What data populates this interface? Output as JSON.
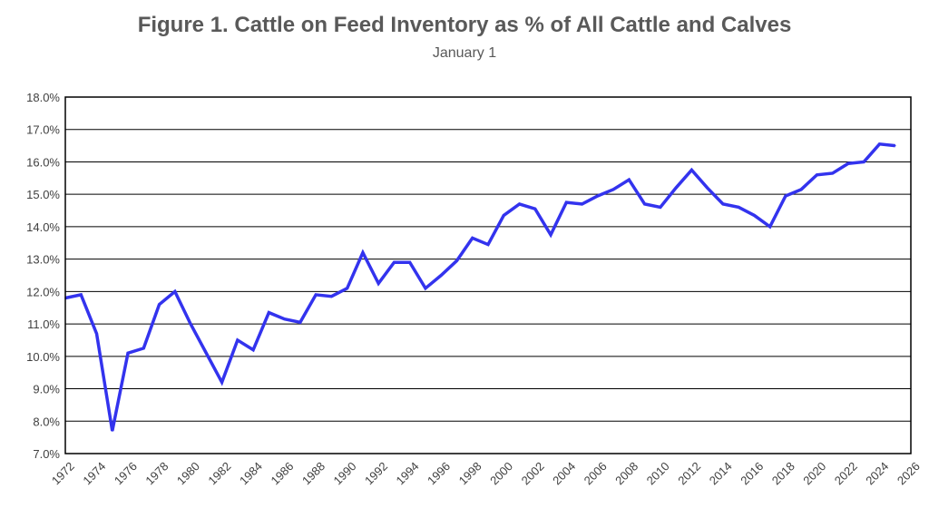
{
  "chart_data": {
    "type": "line",
    "title": "Figure 1. Cattle on Feed Inventory as % of All Cattle and Calves",
    "subtitle": "January 1",
    "xlabel": "",
    "ylabel": "",
    "xlim": [
      1972,
      2026
    ],
    "ylim": [
      7.0,
      18.0
    ],
    "grid": true,
    "color": "#3333ee",
    "yticks": [
      "7.0%",
      "8.0%",
      "9.0%",
      "10.0%",
      "11.0%",
      "12.0%",
      "13.0%",
      "14.0%",
      "15.0%",
      "16.0%",
      "17.0%",
      "18.0%"
    ],
    "xticks": [
      "1972",
      "1974",
      "1976",
      "1978",
      "1980",
      "1982",
      "1984",
      "1986",
      "1988",
      "1990",
      "1992",
      "1994",
      "1996",
      "1998",
      "2000",
      "2002",
      "2004",
      "2006",
      "2008",
      "2010",
      "2012",
      "2014",
      "2016",
      "2018",
      "2020",
      "2022",
      "2024",
      "2026"
    ],
    "series": [
      {
        "x": [
          1972,
          1973,
          1974,
          1975,
          1976,
          1977,
          1978,
          1979,
          1980,
          1981,
          1982,
          1983,
          1984,
          1985,
          1986,
          1987,
          1988,
          1989,
          1990,
          1991,
          1992,
          1993,
          1994,
          1995,
          1996,
          1997,
          1998,
          1999,
          2000,
          2001,
          2002,
          2003,
          2004,
          2005,
          2006,
          2007,
          2008,
          2009,
          2010,
          2011,
          2012,
          2013,
          2014,
          2015,
          2016,
          2017,
          2018,
          2019,
          2020,
          2021,
          2022,
          2023,
          2024,
          2025
        ],
        "values": [
          11.8,
          11.9,
          10.7,
          7.7,
          10.1,
          10.25,
          11.6,
          12.0,
          11.0,
          10.1,
          9.2,
          10.5,
          10.2,
          11.35,
          11.15,
          11.05,
          11.9,
          11.85,
          12.1,
          13.2,
          12.25,
          12.9,
          12.9,
          12.1,
          12.5,
          12.95,
          13.65,
          13.45,
          14.35,
          14.7,
          14.55,
          13.75,
          14.75,
          14.7,
          14.95,
          15.15,
          15.45,
          14.7,
          14.6,
          15.2,
          15.75,
          15.2,
          14.7,
          14.6,
          14.35,
          14.0,
          14.95,
          15.15,
          15.6,
          15.65,
          15.95,
          16.0,
          16.55,
          16.5
        ]
      }
    ]
  }
}
